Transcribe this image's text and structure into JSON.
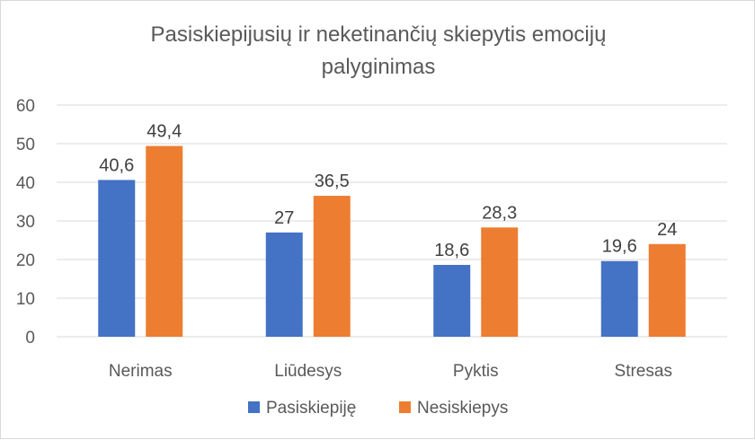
{
  "chart_data": {
    "type": "bar",
    "title_lines": [
      "Pasiskiepijusių ir neketinančių skiepytis emocijų",
      "palyginimas"
    ],
    "categories": [
      "Nerimas",
      "Liūdesys",
      "Pyktis",
      "Stresas"
    ],
    "series": [
      {
        "name": "Pasiskiepiję",
        "color": "#4472c4",
        "values": [
          40.6,
          27,
          18.6,
          19.6
        ],
        "labels": [
          "40,6",
          "27",
          "18,6",
          "19,6"
        ]
      },
      {
        "name": "Nesiskiepys",
        "color": "#ed7d31",
        "values": [
          49.4,
          36.5,
          28.3,
          24
        ],
        "labels": [
          "49,4",
          "36,5",
          "28,3",
          "24"
        ]
      }
    ],
    "ylim": [
      0,
      60
    ],
    "yticks": [
      0,
      10,
      20,
      30,
      40,
      50,
      60
    ],
    "grid": true,
    "legend": "bottom",
    "xlabel": "",
    "ylabel": ""
  }
}
